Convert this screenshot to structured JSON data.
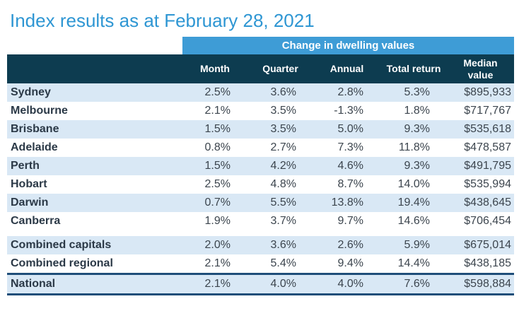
{
  "title": "Index results as at February 28, 2021",
  "table": {
    "banner": "Change in dwelling values"
  },
  "colors": {
    "title_blue": "#2E96D3",
    "banner_blue": "#3E9CD6",
    "header_dark_teal": "#0D3C50",
    "row_light_blue": "#D9E8F5",
    "total_rule_navy": "#1F4E79"
  },
  "chart_data": {
    "type": "table",
    "title": "Index results as at February 28, 2021",
    "group_header": "Change in dwelling values",
    "columns": [
      "Month",
      "Quarter",
      "Annual",
      "Total return",
      "Median value"
    ],
    "rows": [
      {
        "label": "Sydney",
        "values": [
          "2.5%",
          "3.6%",
          "2.8%",
          "5.3%",
          "$895,933"
        ]
      },
      {
        "label": "Melbourne",
        "values": [
          "2.1%",
          "3.5%",
          "-1.3%",
          "1.8%",
          "$717,767"
        ]
      },
      {
        "label": "Brisbane",
        "values": [
          "1.5%",
          "3.5%",
          "5.0%",
          "9.3%",
          "$535,618"
        ]
      },
      {
        "label": "Adelaide",
        "values": [
          "0.8%",
          "2.7%",
          "7.3%",
          "11.8%",
          "$478,587"
        ]
      },
      {
        "label": "Perth",
        "values": [
          "1.5%",
          "4.2%",
          "4.6%",
          "9.3%",
          "$491,795"
        ]
      },
      {
        "label": "Hobart",
        "values": [
          "2.5%",
          "4.8%",
          "8.7%",
          "14.0%",
          "$535,994"
        ]
      },
      {
        "label": "Darwin",
        "values": [
          "0.7%",
          "5.5%",
          "13.8%",
          "19.4%",
          "$438,645"
        ]
      },
      {
        "label": "Canberra",
        "values": [
          "1.9%",
          "3.7%",
          "9.7%",
          "14.6%",
          "$706,454"
        ]
      },
      {
        "label": "Combined capitals",
        "values": [
          "2.0%",
          "3.6%",
          "2.6%",
          "5.9%",
          "$675,014"
        ]
      },
      {
        "label": "Combined regional",
        "values": [
          "2.1%",
          "5.4%",
          "9.4%",
          "14.4%",
          "$438,185"
        ]
      },
      {
        "label": "National",
        "values": [
          "2.1%",
          "4.0%",
          "4.0%",
          "7.6%",
          "$598,884"
        ]
      }
    ],
    "layout": {
      "gap_before_row_index": 8,
      "total_row_index": 10,
      "shaded_row_parity": "even"
    }
  }
}
